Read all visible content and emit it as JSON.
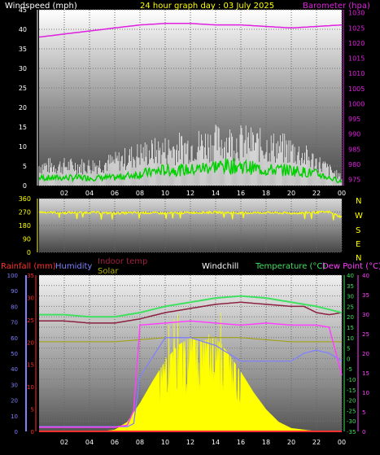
{
  "header": {
    "left_title": "Windspeed (mph)",
    "center_title": "24 hour graph day : 03 July 2025",
    "right_title": "Barometer (hpa)"
  },
  "mid_labels": {
    "compass": [
      "N",
      "W",
      "S",
      "E",
      "N"
    ]
  },
  "bottom_header": {
    "rain": "Rainfall (mm)",
    "humidity": "Humidity",
    "indoor": "Indoor temp",
    "solar": "Solar",
    "windchill": "Windchill",
    "temp": "Temperature (°C)",
    "dew": "Dew Point (°C)"
  },
  "colors": {
    "barometer": "#e020e0",
    "wind_gust": "#ffffff",
    "wind_avg": "#00d000",
    "wind_dir": "#ffff00",
    "temperature": "#40e060",
    "dewpoint": "#ff40ff",
    "indoor": "#8b2040",
    "humidity": "#8080ff",
    "solar": "#ffff00",
    "windchill": "#ffffff",
    "rainfall": "#ff3030"
  },
  "chart_data": [
    {
      "type": "line",
      "title": "24 hour graph day : 03 July 2025",
      "x_ticks": [
        "02",
        "04",
        "06",
        "08",
        "10",
        "12",
        "14",
        "16",
        "18",
        "20",
        "22",
        "00"
      ],
      "left_axis": {
        "label": "Windspeed (mph)",
        "ticks": [
          0,
          5,
          10,
          15,
          20,
          25,
          30,
          35,
          40,
          45
        ],
        "range": [
          0,
          45
        ]
      },
      "right_axis": {
        "label": "Barometer (hpa)",
        "ticks": [
          975,
          980,
          985,
          990,
          995,
          1000,
          1005,
          1010,
          1015,
          1020,
          1025,
          1030
        ],
        "range": [
          973,
          1031
        ]
      },
      "series": [
        {
          "name": "Barometer",
          "axis": "right",
          "x_hours": [
            0,
            2,
            4,
            6,
            8,
            10,
            12,
            14,
            16,
            18,
            20,
            22,
            24
          ],
          "values": [
            1022,
            1023,
            1024,
            1025,
            1026,
            1026.5,
            1026.5,
            1026,
            1026,
            1025.5,
            1025,
            1025.5,
            1026
          ]
        },
        {
          "name": "Windspeed",
          "axis": "left",
          "x_hours": [
            0,
            2,
            4,
            6,
            8,
            10,
            12,
            14,
            16,
            18,
            20,
            22,
            24
          ],
          "values": [
            5,
            5,
            5,
            6,
            8,
            9,
            10,
            11,
            11,
            10,
            9,
            6,
            2
          ]
        },
        {
          "name": "Windspeed",
          "axis": "left",
          "x_hours": [
            0,
            2,
            4,
            6,
            8,
            10,
            12,
            14,
            16,
            18,
            20,
            22,
            24
          ],
          "values": [
            2,
            2,
            2,
            2,
            3,
            4,
            4,
            5,
            5,
            4,
            4,
            3,
            1
          ]
        }
      ]
    },
    {
      "type": "line",
      "y_ticks": [
        0,
        90,
        180,
        270,
        360
      ],
      "range": [
        0,
        360
      ],
      "series": [
        {
          "name": "Wind direction",
          "x_hours": [
            0,
            2,
            4,
            6,
            8,
            10,
            12,
            14,
            16,
            18,
            20,
            22,
            23,
            24
          ],
          "values": [
            270,
            265,
            268,
            262,
            266,
            262,
            266,
            268,
            264,
            266,
            262,
            268,
            270,
            235
          ]
        }
      ]
    },
    {
      "type": "line",
      "x_ticks": [
        "02",
        "04",
        "06",
        "08",
        "10",
        "12",
        "14",
        "16",
        "18",
        "20",
        "22",
        "00"
      ],
      "left_axis_humidity": {
        "ticks": [
          0,
          10,
          20,
          30,
          40,
          50,
          60,
          70,
          80,
          90,
          100
        ],
        "range": [
          0,
          100
        ]
      },
      "left_axis_rain": {
        "ticks": [
          0,
          5,
          10,
          15,
          20,
          25,
          30,
          35
        ],
        "range": [
          0,
          35
        ]
      },
      "right_axis_temp": {
        "ticks": [
          40,
          35,
          30,
          25,
          20,
          15,
          10,
          5,
          0,
          -5,
          -10,
          -15,
          -20,
          -25,
          -30,
          -35
        ],
        "range": [
          -35,
          40
        ]
      },
      "right_axis_dew": {
        "ticks": [
          40,
          35,
          30,
          25,
          20,
          15,
          10,
          5,
          0
        ],
        "range": [
          0,
          40
        ]
      },
      "series": [
        {
          "name": "Temperature (°C)",
          "axis": "temp",
          "x_hours": [
            0,
            2,
            4,
            6,
            8,
            10,
            12,
            14,
            16,
            18,
            20,
            22,
            24
          ],
          "values": [
            21,
            21,
            20,
            20,
            22,
            25,
            27,
            29,
            30,
            29,
            27,
            25,
            22
          ]
        },
        {
          "name": "Indoor temp",
          "axis": "temp",
          "x_hours": [
            0,
            2,
            4,
            6,
            8,
            10,
            12,
            14,
            16,
            18,
            20,
            21,
            22,
            23,
            24
          ],
          "values": [
            18,
            18,
            17,
            17,
            19,
            22,
            24,
            26,
            27,
            26,
            25,
            25,
            22,
            21,
            22
          ]
        },
        {
          "name": "Dew Point (°C)",
          "axis": "temp",
          "x_hours": [
            0,
            6,
            7,
            7.5,
            8,
            10,
            12,
            14,
            16,
            18,
            20,
            22,
            23,
            24
          ],
          "values": [
            -33,
            -33,
            -32,
            -25,
            16,
            17,
            18,
            17,
            16,
            17,
            16,
            16,
            15,
            -8
          ]
        },
        {
          "name": "Humidity",
          "axis": "humidity",
          "x_hours": [
            0,
            6,
            7,
            7.5,
            8,
            10,
            12,
            14,
            16,
            18,
            20,
            21,
            22,
            23,
            24
          ],
          "values": [
            3,
            3,
            3,
            5,
            35,
            60,
            60,
            55,
            45,
            45,
            45,
            50,
            52,
            50,
            45
          ]
        },
        {
          "name": "Windchill",
          "axis": "temp",
          "x_hours": [
            0,
            2,
            4,
            6,
            8,
            10,
            12,
            14,
            16,
            18,
            20,
            22,
            24
          ],
          "values": [
            8,
            8,
            8,
            8,
            9,
            10,
            10,
            10,
            10,
            9,
            8,
            8,
            8
          ]
        },
        {
          "name": "Solar",
          "axis": "humidity",
          "x_hours": [
            0,
            5,
            6,
            7,
            8,
            9,
            10,
            11,
            12,
            13,
            14,
            15,
            16,
            17,
            18,
            19,
            20,
            21,
            22,
            24
          ],
          "values": [
            0,
            0,
            1,
            6,
            18,
            32,
            45,
            55,
            60,
            58,
            60,
            50,
            38,
            25,
            14,
            6,
            2,
            1,
            0,
            0
          ]
        },
        {
          "name": "Rainfall (mm)",
          "axis": "rain",
          "x_hours": [
            0,
            24
          ],
          "values": [
            0,
            0
          ]
        }
      ]
    }
  ]
}
